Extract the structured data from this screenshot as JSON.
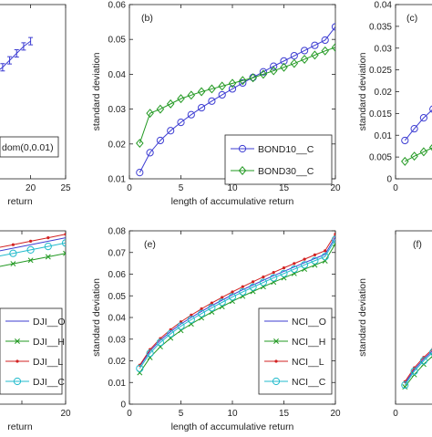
{
  "chart_data": [
    {
      "panel": "top-left",
      "type": "line",
      "xlim": [
        0,
        25
      ],
      "xticks": [
        0,
        5,
        10,
        15,
        20,
        25
      ],
      "xtick_labels": [
        "",
        "",
        "",
        "",
        "20",
        "25"
      ],
      "xlabel": "return",
      "ylim": [
        0,
        1
      ],
      "series": [
        {
          "name": "",
          "color": "#3c3cd2",
          "marker": "errorbar",
          "x": [
            1,
            2,
            3,
            4,
            5,
            6,
            7,
            8,
            9,
            10,
            11,
            12,
            13,
            14,
            15,
            16,
            17,
            18,
            19,
            20
          ],
          "y": [
            0.06,
            0.1,
            0.14,
            0.18,
            0.22,
            0.26,
            0.29,
            0.33,
            0.37,
            0.41,
            0.45,
            0.49,
            0.53,
            0.57,
            0.61,
            0.64,
            0.68,
            0.72,
            0.76,
            0.79
          ]
        }
      ],
      "legend": {
        "entries": [
          {
            "name": "dom(0,0.01)"
          }
        ]
      }
    },
    {
      "panel": "top-middle",
      "type": "line",
      "annotation": "(b)",
      "xlim": [
        0,
        20
      ],
      "xticks": [
        0,
        5,
        10,
        15,
        20
      ],
      "ylim": [
        0.01,
        0.06
      ],
      "yticks": [
        0.01,
        0.02,
        0.03,
        0.04,
        0.05,
        0.06
      ],
      "ytick_labels": [
        "0.01",
        "0.02",
        "0.03",
        "0.04",
        "0.05",
        "0.06"
      ],
      "xlabel": "length of accumulative return",
      "ylabel": "standard deviation",
      "legend_position": "bottom-right",
      "series": [
        {
          "name": "BOND10__C",
          "color": "#3c3cd2",
          "marker": "circle",
          "x": [
            1,
            2,
            3,
            4,
            5,
            6,
            7,
            8,
            9,
            10,
            11,
            12,
            13,
            14,
            15,
            16,
            17,
            18,
            19,
            20
          ],
          "y": [
            0.0118,
            0.0175,
            0.021,
            0.0238,
            0.0262,
            0.0284,
            0.0304,
            0.0323,
            0.0341,
            0.0358,
            0.0375,
            0.0391,
            0.0407,
            0.0423,
            0.0438,
            0.0453,
            0.0468,
            0.0483,
            0.0498,
            0.0536
          ]
        },
        {
          "name": "BOND30__C",
          "color": "#229922",
          "marker": "diamond",
          "x": [
            1,
            2,
            3,
            4,
            5,
            6,
            7,
            8,
            9,
            10,
            11,
            12,
            13,
            14,
            15,
            16,
            17,
            18,
            19,
            20
          ],
          "y": [
            0.0202,
            0.0288,
            0.03,
            0.0315,
            0.033,
            0.034,
            0.035,
            0.0358,
            0.0366,
            0.0374,
            0.0382,
            0.039,
            0.04,
            0.041,
            0.042,
            0.0431,
            0.0443,
            0.0455,
            0.0467,
            0.0477
          ]
        }
      ]
    },
    {
      "panel": "top-right",
      "type": "line",
      "annotation": "(c)",
      "xlim": [
        0,
        20
      ],
      "xticks": [
        0,
        5,
        10,
        15,
        20
      ],
      "xtick_labels": [
        "0",
        "5",
        "",
        "",
        ""
      ],
      "ylim": [
        0,
        0.04
      ],
      "yticks": [
        0,
        0.005,
        0.01,
        0.015,
        0.02,
        0.025,
        0.03,
        0.035,
        0.04
      ],
      "ytick_labels": [
        "0",
        "0.005",
        "0.01",
        "0.015",
        "0.02",
        "0.025",
        "0.03",
        "0.035",
        "0.04"
      ],
      "ylabel": "standard deviation",
      "series": [
        {
          "name": "",
          "color": "#3c3cd2",
          "marker": "circle",
          "x": [
            1,
            2,
            3,
            4,
            5
          ],
          "y": [
            0.0088,
            0.0115,
            0.014,
            0.016,
            0.0178
          ]
        },
        {
          "name": "",
          "color": "#229922",
          "marker": "diamond",
          "x": [
            1,
            2,
            3,
            4,
            5
          ],
          "y": [
            0.004,
            0.0052,
            0.0062,
            0.0072,
            0.008
          ]
        }
      ]
    },
    {
      "panel": "bottom-left",
      "type": "line",
      "xlim": [
        0,
        20
      ],
      "xticks": [
        0,
        5,
        10,
        15,
        20
      ],
      "xtick_labels": [
        "",
        "",
        "",
        "",
        "20"
      ],
      "xlabel": "return",
      "ylim": [
        0,
        1
      ],
      "legend_position": "bottom-right",
      "series": [
        {
          "name": "DJI__O",
          "color": "#3c3cd2",
          "marker": "none",
          "x": [
            0,
            4,
            8,
            12,
            16,
            20
          ],
          "y": [
            0.76,
            0.8,
            0.84,
            0.88,
            0.92,
            0.96
          ]
        },
        {
          "name": "DJI__H",
          "color": "#229922",
          "marker": "x",
          "x": [
            0,
            2,
            4,
            6,
            8,
            10,
            12,
            14,
            16,
            18,
            20
          ],
          "y": [
            0.67,
            0.69,
            0.71,
            0.73,
            0.75,
            0.77,
            0.79,
            0.81,
            0.83,
            0.85,
            0.87
          ]
        },
        {
          "name": "DJI__L",
          "color": "#d22222",
          "marker": "dot",
          "x": [
            0,
            2,
            4,
            6,
            8,
            10,
            12,
            14,
            16,
            18,
            20
          ],
          "y": [
            0.78,
            0.8,
            0.82,
            0.84,
            0.86,
            0.88,
            0.9,
            0.92,
            0.94,
            0.96,
            0.98
          ]
        },
        {
          "name": "DJI__C",
          "color": "#22bbcc",
          "marker": "circle",
          "x": [
            0,
            2,
            4,
            6,
            8,
            10,
            12,
            14,
            16,
            18,
            20
          ],
          "y": [
            0.73,
            0.75,
            0.77,
            0.79,
            0.81,
            0.83,
            0.85,
            0.87,
            0.89,
            0.91,
            0.93
          ]
        }
      ]
    },
    {
      "panel": "bottom-middle",
      "type": "line",
      "annotation": "(e)",
      "xlim": [
        0,
        20
      ],
      "xticks": [
        0,
        5,
        10,
        15,
        20
      ],
      "ylim": [
        0,
        0.08
      ],
      "yticks": [
        0,
        0.01,
        0.02,
        0.03,
        0.04,
        0.05,
        0.06,
        0.07,
        0.08
      ],
      "ytick_labels": [
        "0",
        "0.01",
        "0.02",
        "0.03",
        "0.04",
        "0.05",
        "0.06",
        "0.07",
        "0.08"
      ],
      "xlabel": "length of accumulative return",
      "ylabel": "standard deviation",
      "legend_position": "bottom-right",
      "series": [
        {
          "name": "NCI__O",
          "color": "#3c3cd2",
          "marker": "none",
          "x": [
            1,
            2,
            3,
            4,
            5,
            6,
            7,
            8,
            9,
            10,
            11,
            12,
            13,
            14,
            15,
            16,
            17,
            18,
            19,
            20
          ],
          "y": [
            0.0175,
            0.0245,
            0.0295,
            0.0335,
            0.037,
            0.04,
            0.0428,
            0.0455,
            0.048,
            0.0505,
            0.0528,
            0.055,
            0.0572,
            0.0593,
            0.0613,
            0.0633,
            0.0653,
            0.0672,
            0.0691,
            0.0772
          ]
        },
        {
          "name": "NCI__H",
          "color": "#229922",
          "marker": "x",
          "x": [
            1,
            2,
            3,
            4,
            5,
            6,
            7,
            8,
            9,
            10,
            11,
            12,
            13,
            14,
            15,
            16,
            17,
            18,
            19,
            20
          ],
          "y": [
            0.0145,
            0.0215,
            0.0265,
            0.0305,
            0.034,
            0.037,
            0.0398,
            0.0425,
            0.045,
            0.0475,
            0.0498,
            0.052,
            0.0542,
            0.0563,
            0.0583,
            0.0603,
            0.0623,
            0.0642,
            0.0661,
            0.074
          ]
        },
        {
          "name": "NCI__L",
          "color": "#d22222",
          "marker": "dot",
          "x": [
            1,
            2,
            3,
            4,
            5,
            6,
            7,
            8,
            9,
            10,
            11,
            12,
            13,
            14,
            15,
            16,
            17,
            18,
            19,
            20
          ],
          "y": [
            0.018,
            0.0252,
            0.0303,
            0.0344,
            0.038,
            0.0411,
            0.044,
            0.0467,
            0.0493,
            0.0518,
            0.0542,
            0.0565,
            0.0587,
            0.0608,
            0.0629,
            0.0649,
            0.0669,
            0.0689,
            0.0708,
            0.0785
          ]
        },
        {
          "name": "NCI__C",
          "color": "#22bbcc",
          "marker": "circle",
          "x": [
            1,
            2,
            3,
            4,
            5,
            6,
            7,
            8,
            9,
            10,
            11,
            12,
            13,
            14,
            15,
            16,
            17,
            18,
            19,
            20
          ],
          "y": [
            0.0165,
            0.0235,
            0.0285,
            0.0325,
            0.036,
            0.039,
            0.0418,
            0.0445,
            0.047,
            0.0495,
            0.0518,
            0.054,
            0.0562,
            0.0583,
            0.0603,
            0.0623,
            0.0643,
            0.0662,
            0.0681,
            0.076
          ]
        }
      ]
    },
    {
      "panel": "bottom-right",
      "type": "line",
      "annotation": "(f)",
      "xlim": [
        0,
        20
      ],
      "xticks": [
        0,
        5,
        10,
        15,
        20
      ],
      "xtick_labels": [
        "0",
        "5",
        "",
        "",
        ""
      ],
      "ylim": [
        0,
        1
      ],
      "ylabel": "standard deviation",
      "series": [
        {
          "name": "",
          "color": "#3c3cd2",
          "marker": "none",
          "x": [
            1,
            2,
            3,
            4,
            5
          ],
          "y": [
            0.12,
            0.2,
            0.26,
            0.31,
            0.35
          ]
        },
        {
          "name": "",
          "color": "#229922",
          "marker": "x",
          "x": [
            1,
            2,
            3,
            4,
            5
          ],
          "y": [
            0.1,
            0.17,
            0.23,
            0.28,
            0.32
          ]
        },
        {
          "name": "",
          "color": "#d22222",
          "marker": "dot",
          "x": [
            1,
            2,
            3,
            4,
            5
          ],
          "y": [
            0.13,
            0.21,
            0.27,
            0.32,
            0.36
          ]
        },
        {
          "name": "",
          "color": "#22bbcc",
          "marker": "circle",
          "x": [
            1,
            2,
            3,
            4,
            5
          ],
          "y": [
            0.11,
            0.19,
            0.25,
            0.3,
            0.34
          ]
        }
      ]
    }
  ]
}
